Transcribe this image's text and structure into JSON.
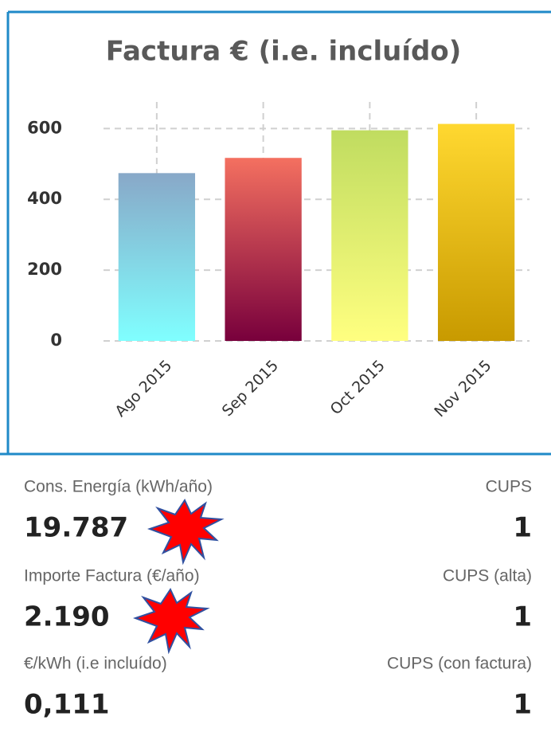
{
  "chart_data": {
    "type": "bar",
    "title": "Factura €  (i.e. incluído)",
    "categories": [
      "Ago 2015",
      "Sep 2015",
      "Oct 2015",
      "Nov 2015"
    ],
    "values": [
      474,
      517,
      595,
      613
    ],
    "colors": [
      [
        "#88a8c8",
        "#80ffff"
      ],
      [
        "#f47060",
        "#78003c"
      ],
      [
        "#c0dc60",
        "#ffff80"
      ],
      [
        "#ffd830",
        "#c89a00"
      ]
    ],
    "ylim": [
      0,
      675
    ],
    "yticks": [
      0,
      200,
      400,
      600
    ],
    "grid": true
  },
  "stats": {
    "left": [
      {
        "label": "Cons. Energía (kWh/año)",
        "value": "19.787"
      },
      {
        "label": "Importe Factura (€/año)",
        "value": "2.190"
      },
      {
        "label": "€/kWh (i.e incluído)",
        "value": "0,111"
      }
    ],
    "right": [
      {
        "label": "CUPS",
        "value": "1"
      },
      {
        "label": "CUPS (alta)",
        "value": "1"
      },
      {
        "label": "CUPS (con factura)",
        "value": "1"
      }
    ]
  }
}
